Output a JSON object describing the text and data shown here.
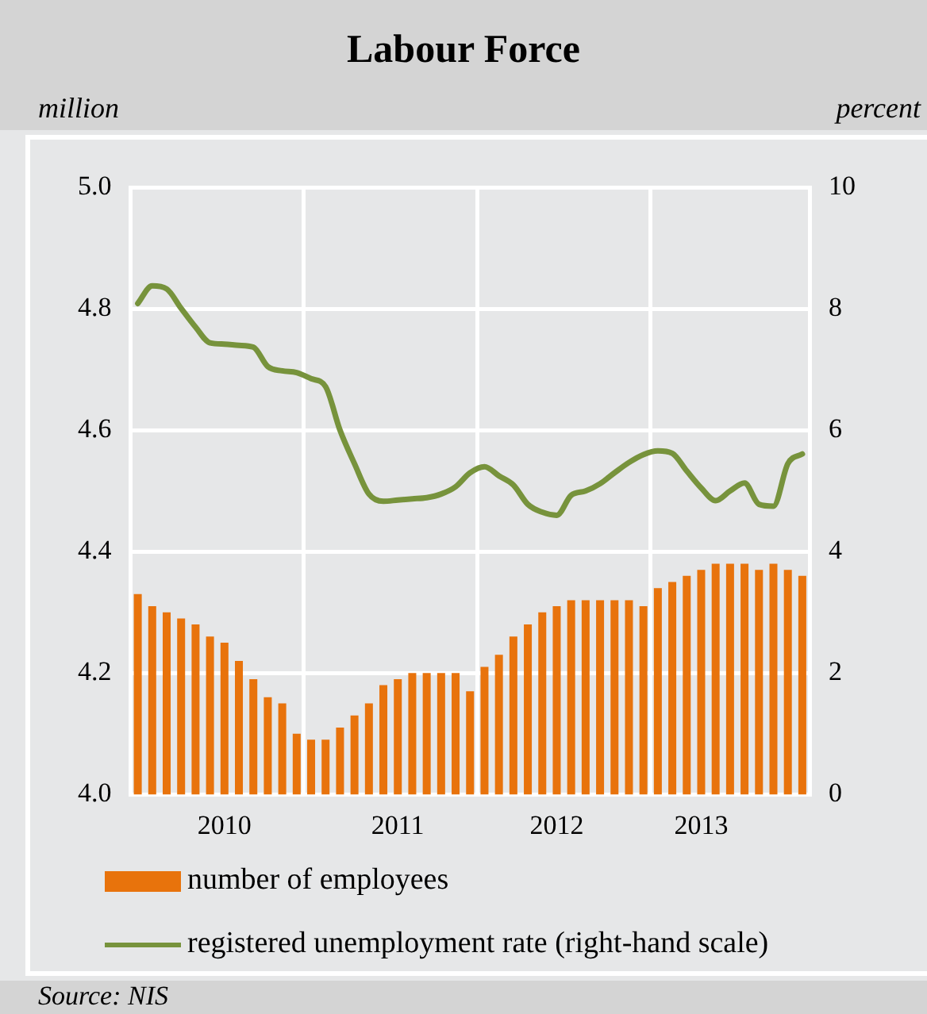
{
  "chart_data": {
    "type": "bar",
    "title": "Labour Force",
    "ylabel": "million",
    "y2label": "percent",
    "categories": [
      null,
      null,
      null,
      null,
      null,
      null,
      "2010",
      null,
      null,
      null,
      null,
      null,
      null,
      null,
      null,
      null,
      null,
      null,
      "2011",
      null,
      null,
      null,
      null,
      null,
      null,
      null,
      null,
      null,
      null,
      "2012",
      null,
      null,
      null,
      null,
      null,
      null,
      null,
      null,
      null,
      "2013",
      null,
      null,
      null,
      null,
      null,
      null,
      null
    ],
    "series": [
      {
        "name": "number of employees",
        "color": "#e8730c",
        "values": [
          4.33,
          4.31,
          4.3,
          4.29,
          4.28,
          4.26,
          4.25,
          4.22,
          4.19,
          4.16,
          4.15,
          4.1,
          4.09,
          4.09,
          4.11,
          4.13,
          4.15,
          4.18,
          4.19,
          4.2,
          4.2,
          4.2,
          4.2,
          4.17,
          4.21,
          4.23,
          4.26,
          4.28,
          4.3,
          4.31,
          4.32,
          4.32,
          4.32,
          4.32,
          4.32,
          4.31,
          4.34,
          4.35,
          4.36,
          4.37,
          4.38,
          4.38,
          4.38,
          4.37,
          4.38,
          4.37,
          4.36
        ]
      },
      {
        "name": "registered unemployment rate (right-hand scale)",
        "type": "line",
        "axis": "y2",
        "color": "#77933c",
        "values": [
          8.09,
          8.38,
          8.33,
          8.01,
          7.7,
          7.44,
          7.42,
          7.4,
          7.37,
          7.05,
          6.98,
          6.95,
          6.85,
          6.72,
          6.0,
          5.45,
          4.95,
          4.83,
          4.85,
          4.87,
          4.89,
          4.95,
          5.07,
          5.3,
          5.4,
          5.25,
          5.1,
          4.78,
          4.65,
          4.6,
          4.93,
          5.0,
          5.12,
          5.3,
          5.47,
          5.6,
          5.66,
          5.62,
          5.33,
          5.05,
          4.84,
          5.0,
          5.13,
          4.78,
          4.75,
          5.45,
          5.61
        ]
      }
    ],
    "ylim": [
      4.0,
      5.0
    ],
    "yticks": [
      {
        "value": 4,
        "label": "4.0"
      },
      4.2,
      4.4,
      4.6,
      4.8,
      {
        "value": 5,
        "label": "5.0"
      }
    ],
    "y2lim": [
      0,
      10
    ],
    "y2ticks": [
      0,
      2,
      4,
      6,
      8,
      10
    ],
    "grid": true,
    "legend": "bottom",
    "marker": "none",
    "line_style": "solid",
    "annotations": [
      "Source: NIS"
    ]
  }
}
